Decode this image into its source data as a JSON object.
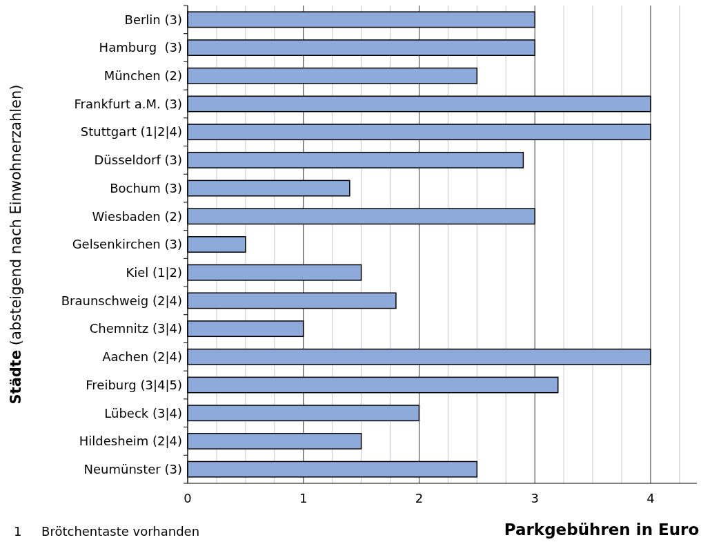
{
  "chart_data": {
    "type": "bar",
    "orientation": "horizontal",
    "xlabel": "Parkgebühren in Euro",
    "ylabel": "Städte (absteigend nach Einwohnerzahlen)",
    "categories": [
      "Berlin (3)",
      "Hamburg  (3)",
      "München (2)",
      "Frankfurt a.M. (3)",
      "Stuttgart (1|2|4)",
      "Düsseldorf (3)",
      "Bochum (3)",
      "Wiesbaden (2)",
      "Gelsenkirchen (3)",
      "Kiel (1|2)",
      "Braunschweig (2|4)",
      "Chemnitz (3|4)",
      "Aachen (2|4)",
      "Freiburg (3|4|5)",
      "Lübeck (3|4)",
      "Hildesheim (2|4)",
      "Neumünster (3)"
    ],
    "values": [
      3,
      3,
      2.5,
      4,
      4,
      2.9,
      1.4,
      3,
      0.5,
      1.5,
      1.8,
      1,
      4,
      3.2,
      2,
      1.5,
      2.5
    ],
    "color": "#8eaadb",
    "xlim": [
      0,
      4.4
    ],
    "xticks": [
      0,
      {
        "value": 0.25,
        "label": null
      },
      {
        "value": 0.5,
        "label": null
      },
      {
        "value": 0.75,
        "label": null
      },
      1,
      {
        "value": 1.25,
        "label": null
      },
      {
        "value": 1.5,
        "label": null
      },
      {
        "value": 1.75,
        "label": null
      },
      2,
      {
        "value": 2.25,
        "label": null
      },
      {
        "value": 2.5,
        "label": null
      },
      {
        "value": 2.75,
        "label": null
      },
      3,
      {
        "value": 3.25,
        "label": null
      },
      {
        "value": 3.5,
        "label": null
      },
      {
        "value": 3.75,
        "label": null
      },
      4,
      {
        "value": 4.25,
        "label": null
      }
    ],
    "grid": "x",
    "annotations": [
      "1     Brötchentaste vorhanden"
    ]
  }
}
